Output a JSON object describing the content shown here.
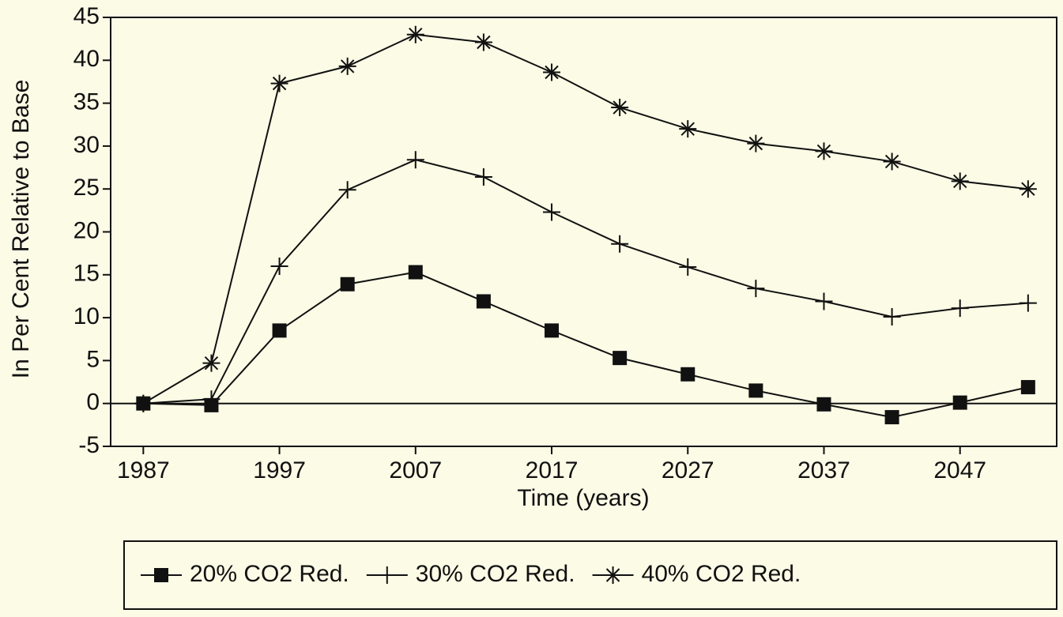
{
  "chart_data": {
    "type": "line",
    "x_label": "Time (years)",
    "y_label": "In Per Cent Relative to Base",
    "x": [
      1987,
      1992,
      1997,
      2002,
      2007,
      2012,
      2017,
      2022,
      2027,
      2032,
      2037,
      2042,
      2047,
      2052
    ],
    "series": [
      {
        "name": "20% CO2 Red.",
        "color": "#111111",
        "marker": "square",
        "values": [
          0,
          -0.2,
          8.5,
          13.9,
          15.3,
          11.9,
          8.5,
          5.3,
          3.4,
          1.5,
          -0.1,
          -1.6,
          0.1,
          1.9
        ]
      },
      {
        "name": "30% CO2 Red.",
        "color": "#111111",
        "marker": "plus",
        "values": [
          0,
          0.5,
          16,
          24.9,
          28.4,
          26.4,
          22.3,
          18.6,
          15.9,
          13.4,
          11.9,
          10.1,
          11.1,
          11.7
        ]
      },
      {
        "name": "40% CO2 Red.",
        "color": "#111111",
        "marker": "star",
        "values": [
          0,
          4.7,
          37.3,
          39.3,
          43,
          42.1,
          38.6,
          34.5,
          32,
          30.3,
          29.4,
          28.2,
          25.9,
          25.0
        ]
      }
    ],
    "xlim": [
      1984.6,
      2054.1
    ],
    "xticks": [
      1987,
      1997,
      2007,
      2017,
      2027,
      2037,
      2047
    ],
    "ylim": [
      -5,
      45
    ],
    "yticks": [
      -5,
      0,
      5,
      10,
      15,
      20,
      25,
      30,
      35,
      40,
      45
    ],
    "zero_line": true,
    "legend": "bottom"
  }
}
